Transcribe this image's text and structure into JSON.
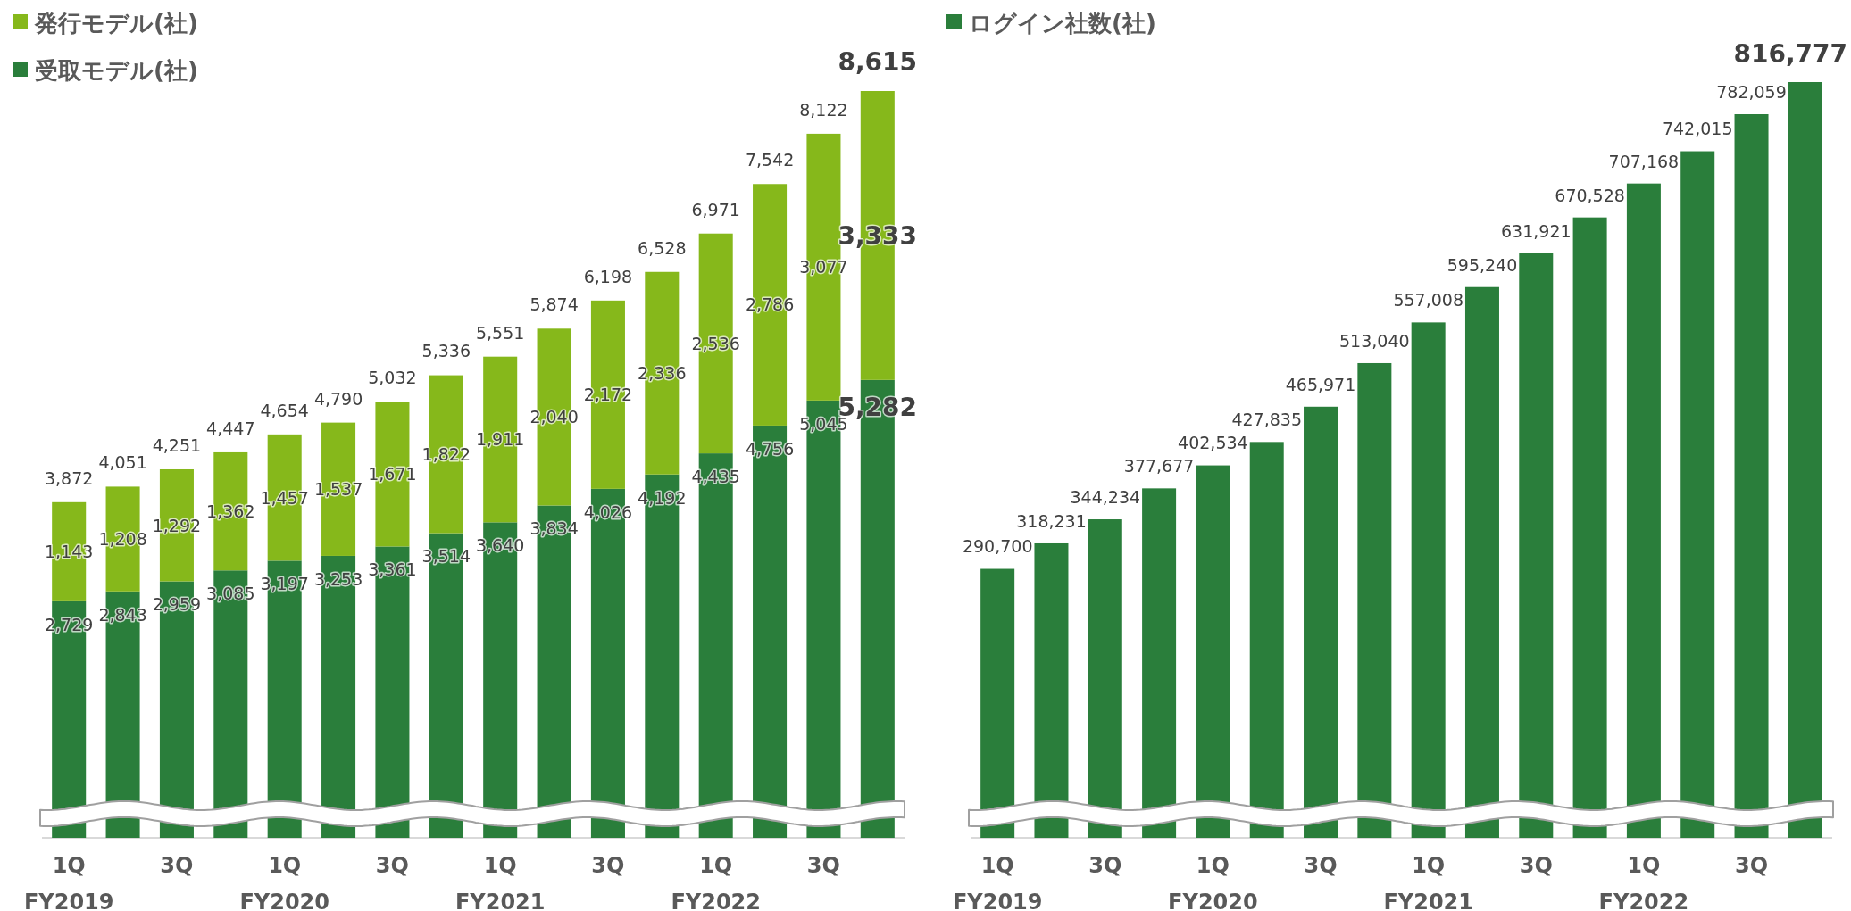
{
  "chart_data": [
    {
      "type": "bar",
      "stacked": true,
      "legend": "top left",
      "categories": [
        "1Q\nFY2019",
        null,
        "3Q",
        null,
        "1Q\nFY2020",
        null,
        "3Q",
        null,
        "1Q\nFY2021",
        null,
        "3Q",
        null,
        "1Q\nFY2022",
        null,
        "3Q",
        null
      ],
      "series": [
        {
          "name": "受取モデル(社)",
          "color": "#2a7e3b",
          "values": [
            2729,
            2843,
            2959,
            3085,
            3197,
            3253,
            3361,
            3514,
            3640,
            3834,
            4026,
            4192,
            4435,
            4756,
            5045,
            5282
          ],
          "value_labels": [
            "2,729",
            "2,843",
            "2,959",
            "3,085",
            "3,197",
            "3,253",
            "3,361",
            "3,514",
            "3,640",
            "3,834",
            "4,026",
            "4,192",
            "4,435",
            "4,756",
            "5,045",
            "5,282"
          ]
        },
        {
          "name": "発行モデル(社)",
          "color": "#86b81b",
          "values": [
            1143,
            1208,
            1292,
            1362,
            1457,
            1537,
            1671,
            1822,
            1911,
            2040,
            2172,
            2336,
            2536,
            2786,
            3077,
            3333
          ],
          "value_labels": [
            "1,143",
            "1,208",
            "1,292",
            "1,362",
            "1,457",
            "1,537",
            "1,671",
            "1,822",
            "1,911",
            "2,040",
            "2,172",
            "2,336",
            "2,536",
            "2,786",
            "3,077",
            "3,333"
          ]
        }
      ],
      "totals": [
        "3,872",
        "4,051",
        "4,251",
        "4,447",
        "4,654",
        "4,790",
        "5,032",
        "5,336",
        "5,551",
        "5,874",
        "6,198",
        "6,528",
        "6,971",
        "7,542",
        "8,122",
        "8,615"
      ]
    },
    {
      "type": "bar",
      "legend": "top left",
      "categories": [
        "1Q\nFY2019",
        null,
        "3Q",
        null,
        "1Q\nFY2020",
        null,
        "3Q",
        null,
        "1Q\nFY2021",
        null,
        "3Q",
        null,
        "1Q\nFY2022",
        null,
        "3Q",
        null
      ],
      "series": [
        {
          "name": "ログイン社数(社)",
          "color": "#2a7e3b",
          "values": [
            290700,
            318231,
            344234,
            377677,
            402534,
            427835,
            465971,
            513040,
            557008,
            595240,
            631921,
            670528,
            707168,
            742015,
            782059,
            816777
          ],
          "value_labels": [
            "290,700",
            "318,231",
            "344,234",
            "377,677",
            "402,534",
            "427,835",
            "465,971",
            "513,040",
            "557,008",
            "595,240",
            "631,921",
            "670,528",
            "707,168",
            "742,015",
            "782,059",
            "816,777"
          ]
        }
      ]
    }
  ]
}
